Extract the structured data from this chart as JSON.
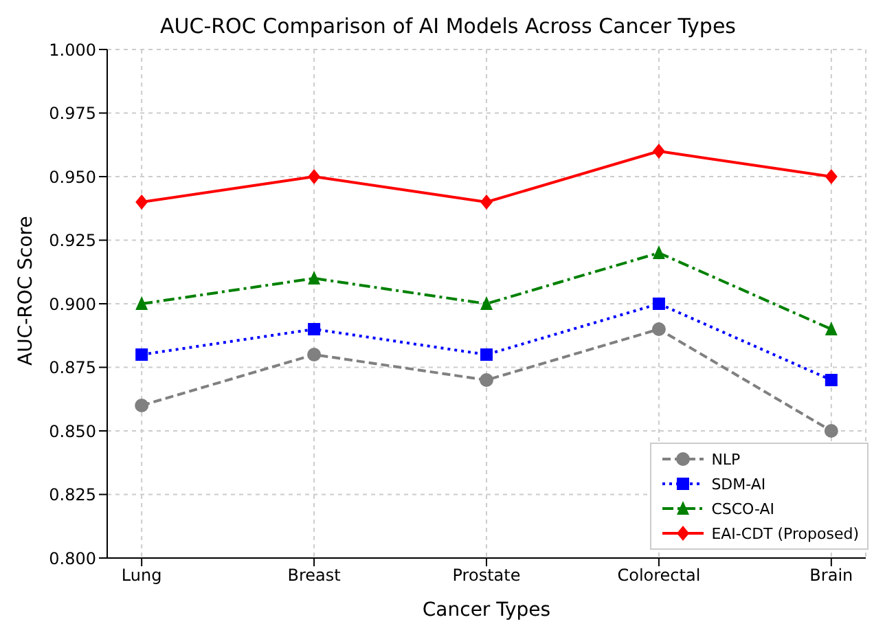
{
  "chart_data": {
    "type": "line",
    "title": "AUC-ROC Comparison of AI Models Across Cancer Types",
    "xlabel": "Cancer Types",
    "ylabel": "AUC-ROC Score",
    "categories": [
      "Lung",
      "Breast",
      "Prostate",
      "Colorectal",
      "Brain"
    ],
    "series": [
      {
        "name": "NLP",
        "color": "#808080",
        "values": [
          0.86,
          0.88,
          0.87,
          0.89,
          0.85
        ],
        "marker": "circle",
        "line_style": "dashed"
      },
      {
        "name": "SDM-AI",
        "color": "#0000ff",
        "values": [
          0.88,
          0.89,
          0.88,
          0.9,
          0.87
        ],
        "marker": "square",
        "line_style": "dotted"
      },
      {
        "name": "CSCO-AI",
        "color": "#008000",
        "values": [
          0.9,
          0.91,
          0.9,
          0.92,
          0.89
        ],
        "marker": "triangle",
        "line_style": "dashdot"
      },
      {
        "name": "EAI-CDT (Proposed)",
        "color": "#ff0000",
        "values": [
          0.94,
          0.95,
          0.94,
          0.96,
          0.95
        ],
        "marker": "diamond",
        "line_style": "solid"
      }
    ],
    "ylim": [
      0.8,
      1.0
    ],
    "yticks": [
      {
        "value": 0.8,
        "label": "0.800"
      },
      {
        "value": 0.825,
        "label": "0.825"
      },
      {
        "value": 0.85,
        "label": "0.850"
      },
      {
        "value": 0.875,
        "label": "0.875"
      },
      {
        "value": 0.9,
        "label": "0.900"
      },
      {
        "value": 0.925,
        "label": "0.925"
      },
      {
        "value": 0.95,
        "label": "0.950"
      },
      {
        "value": 0.975,
        "label": "0.975"
      },
      {
        "value": 1.0,
        "label": "1.000"
      }
    ],
    "grid": true,
    "legend": "bottom right"
  }
}
